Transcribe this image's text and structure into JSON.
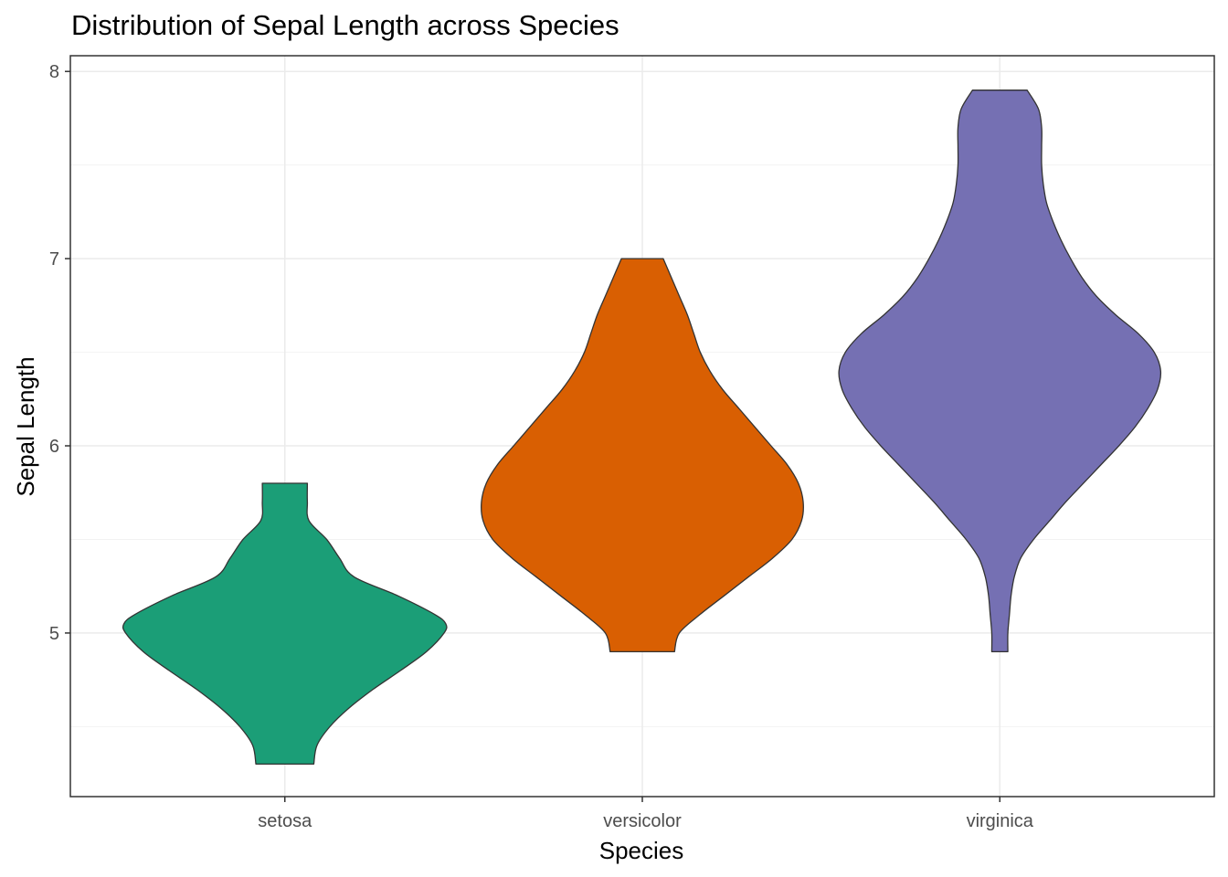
{
  "chart_data": {
    "type": "violin",
    "title": "Distribution of Sepal Length across Species",
    "xlabel": "Species",
    "ylabel": "Sepal Length",
    "categories": [
      "setosa",
      "versicolor",
      "virginica"
    ],
    "ylim": [
      4.126,
      8.084
    ],
    "yticks": [
      5,
      6,
      7,
      8
    ],
    "grid": true,
    "legend": "none",
    "colors": {
      "setosa": "#1b9e77",
      "versicolor": "#d95f02",
      "virginica": "#7570b3",
      "outline": "#333333",
      "panel_border": "#333333",
      "grid_major": "#ebebeb",
      "grid_minor": "#f2f2f2"
    },
    "violins": [
      {
        "name": "setosa",
        "min": 4.3,
        "max": 5.8,
        "profile": [
          [
            4.3,
            0.18
          ],
          [
            4.4,
            0.2
          ],
          [
            4.5,
            0.28
          ],
          [
            4.6,
            0.4
          ],
          [
            4.7,
            0.55
          ],
          [
            4.8,
            0.72
          ],
          [
            4.9,
            0.88
          ],
          [
            5.0,
            0.99
          ],
          [
            5.05,
            1.0
          ],
          [
            5.1,
            0.93
          ],
          [
            5.2,
            0.7
          ],
          [
            5.3,
            0.43
          ],
          [
            5.4,
            0.34
          ],
          [
            5.5,
            0.26
          ],
          [
            5.6,
            0.15
          ],
          [
            5.7,
            0.14
          ],
          [
            5.8,
            0.14
          ]
        ]
      },
      {
        "name": "versicolor",
        "min": 4.9,
        "max": 7.0,
        "profile": [
          [
            4.9,
            0.2
          ],
          [
            5.0,
            0.23
          ],
          [
            5.1,
            0.36
          ],
          [
            5.2,
            0.51
          ],
          [
            5.3,
            0.66
          ],
          [
            5.4,
            0.81
          ],
          [
            5.5,
            0.93
          ],
          [
            5.6,
            0.99
          ],
          [
            5.7,
            1.0
          ],
          [
            5.8,
            0.97
          ],
          [
            5.9,
            0.9
          ],
          [
            6.0,
            0.8
          ],
          [
            6.1,
            0.7
          ],
          [
            6.2,
            0.6
          ],
          [
            6.3,
            0.5
          ],
          [
            6.4,
            0.42
          ],
          [
            6.5,
            0.36
          ],
          [
            6.6,
            0.32
          ],
          [
            6.7,
            0.28
          ],
          [
            6.8,
            0.23
          ],
          [
            6.9,
            0.18
          ],
          [
            7.0,
            0.13
          ]
        ]
      },
      {
        "name": "virginica",
        "min": 4.9,
        "max": 7.9,
        "profile": [
          [
            4.9,
            0.05
          ],
          [
            5.0,
            0.05
          ],
          [
            5.1,
            0.06
          ],
          [
            5.2,
            0.07
          ],
          [
            5.3,
            0.09
          ],
          [
            5.4,
            0.13
          ],
          [
            5.5,
            0.21
          ],
          [
            5.6,
            0.31
          ],
          [
            5.7,
            0.41
          ],
          [
            5.8,
            0.52
          ],
          [
            5.9,
            0.63
          ],
          [
            6.0,
            0.74
          ],
          [
            6.1,
            0.84
          ],
          [
            6.2,
            0.92
          ],
          [
            6.3,
            0.98
          ],
          [
            6.4,
            1.0
          ],
          [
            6.5,
            0.96
          ],
          [
            6.6,
            0.86
          ],
          [
            6.7,
            0.72
          ],
          [
            6.8,
            0.6
          ],
          [
            6.9,
            0.51
          ],
          [
            7.0,
            0.44
          ],
          [
            7.1,
            0.38
          ],
          [
            7.2,
            0.33
          ],
          [
            7.3,
            0.29
          ],
          [
            7.4,
            0.27
          ],
          [
            7.5,
            0.26
          ],
          [
            7.6,
            0.26
          ],
          [
            7.7,
            0.26
          ],
          [
            7.8,
            0.24
          ],
          [
            7.9,
            0.17
          ]
        ]
      }
    ]
  }
}
